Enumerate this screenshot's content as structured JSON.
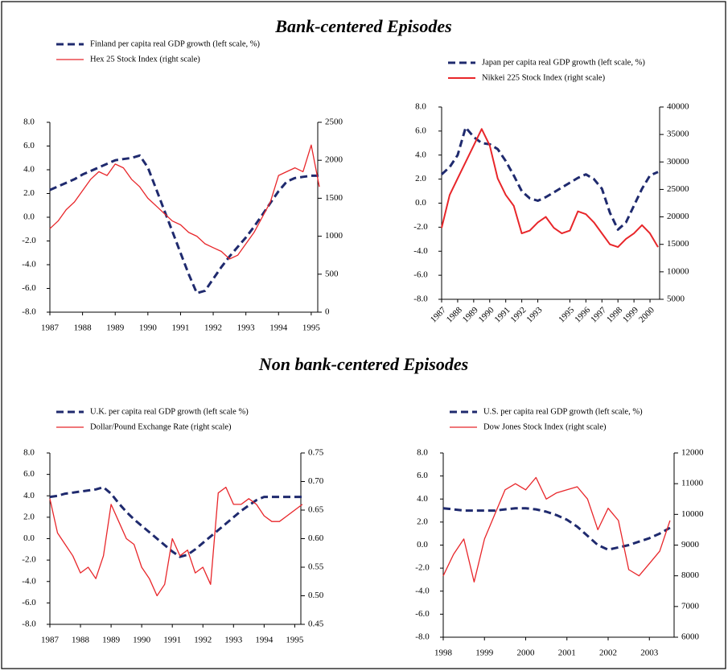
{
  "headings": [
    "Bank-centered Episodes",
    "Non bank-centered Episodes"
  ],
  "chart_data": [
    {
      "type": "line",
      "x": [
        1987,
        1987.25,
        1987.5,
        1987.75,
        1988,
        1988.25,
        1988.5,
        1988.75,
        1989,
        1989.25,
        1989.5,
        1989.75,
        1990,
        1990.25,
        1990.5,
        1990.75,
        1991,
        1991.25,
        1991.5,
        1991.75,
        1992,
        1992.25,
        1992.5,
        1992.75,
        1993,
        1993.25,
        1993.5,
        1993.75,
        1994,
        1994.25,
        1994.5,
        1994.75,
        1995,
        1995.25
      ],
      "xlim": [
        1987,
        1995.2
      ],
      "xticks": [
        1987,
        1988,
        1989,
        1990,
        1991,
        1992,
        1993,
        1994,
        1995
      ],
      "ylim": [
        -8,
        8
      ],
      "yticks": [
        {
          "value": 8,
          "label": "8.0"
        },
        {
          "value": 6,
          "label": "6.0"
        },
        {
          "value": 4,
          "label": "4.0"
        },
        {
          "value": 2,
          "label": "2.0"
        },
        {
          "value": 0,
          "label": "0.0"
        },
        {
          "value": -2,
          "label": "-2.0"
        },
        {
          "value": -4,
          "label": "-4.0"
        },
        {
          "value": -6,
          "label": "-6.0"
        },
        {
          "value": -8,
          "label": "-8.0"
        }
      ],
      "y2lim": [
        0,
        2500
      ],
      "y2ticks": [
        2500,
        2000,
        1500,
        1000,
        500,
        0
      ],
      "series": [
        {
          "name": "Finland per capita real GDP growth (left scale, %)",
          "color": "#1f2a6e",
          "style": "dashed",
          "values": [
            2.3,
            2.6,
            2.9,
            3.2,
            3.6,
            3.9,
            4.2,
            4.5,
            4.8,
            4.9,
            5.0,
            5.2,
            4.2,
            2.4,
            0.6,
            -1.2,
            -3.0,
            -4.8,
            -6.4,
            -6.2,
            -5.2,
            -4.2,
            -3.3,
            -2.5,
            -1.7,
            -0.8,
            0.2,
            1.2,
            2.2,
            3.0,
            3.3,
            3.4,
            3.5,
            3.5
          ]
        },
        {
          "name": "Hex 25 Stock Index (right scale)",
          "color": "#e8262a",
          "style": "solid",
          "axis": "y2",
          "values": [
            1100,
            1200,
            1350,
            1450,
            1600,
            1750,
            1850,
            1800,
            1950,
            1900,
            1750,
            1650,
            1500,
            1400,
            1300,
            1200,
            1150,
            1050,
            1000,
            900,
            850,
            800,
            700,
            750,
            900,
            1050,
            1250,
            1450,
            1800,
            1850,
            1900,
            1850,
            2200,
            1650
          ]
        }
      ]
    },
    {
      "type": "line",
      "x": [
        1987,
        1987.5,
        1988,
        1988.5,
        1989,
        1989.5,
        1990,
        1990.5,
        1991,
        1991.5,
        1992,
        1992.5,
        1993,
        1993.5,
        1994,
        1994.5,
        1995,
        1995.5,
        1996,
        1996.5,
        1997,
        1997.5,
        1998,
        1998.5,
        1999,
        1999.5,
        2000,
        2000.5
      ],
      "xlim": [
        1987,
        2000.6
      ],
      "xticks": [
        1987,
        1988,
        1989,
        1990,
        1991,
        1992,
        1993,
        1995,
        1996,
        1997,
        1998,
        1999,
        2000
      ],
      "ylim": [
        -8,
        8
      ],
      "yticks": [
        {
          "value": 8,
          "label": "8.0"
        },
        {
          "value": 6,
          "label": "6.0"
        },
        {
          "value": 4,
          "label": "4.0"
        },
        {
          "value": 2,
          "label": "2.0"
        },
        {
          "value": 0,
          "label": "0.0"
        },
        {
          "value": -2,
          "label": "-2.0"
        },
        {
          "value": -4,
          "label": "-4.0"
        },
        {
          "value": -6,
          "label": "-6.0"
        },
        {
          "value": -8,
          "label": "-8.0"
        }
      ],
      "y2lim": [
        5000,
        40000
      ],
      "y2ticks": [
        40000,
        35000,
        30000,
        25000,
        20000,
        15000,
        10000,
        5000
      ],
      "series": [
        {
          "name": "Japan per capita real GDP growth (left scale, %)",
          "color": "#1f2a6e",
          "style": "dashed",
          "values": [
            2.4,
            3.0,
            4.0,
            6.3,
            5.5,
            5.0,
            4.9,
            4.5,
            3.5,
            2.3,
            1.0,
            0.4,
            0.2,
            0.5,
            0.9,
            1.3,
            1.7,
            2.1,
            2.4,
            2.0,
            1.2,
            -0.8,
            -2.2,
            -1.6,
            -0.2,
            1.2,
            2.3,
            2.6
          ]
        },
        {
          "name": "Nikkei 225 Stock Index (right scale)",
          "color": "#e8262a",
          "style": "solid",
          "axis": "y2",
          "values": [
            18000,
            24000,
            27000,
            30000,
            33000,
            36000,
            33000,
            27000,
            24000,
            22000,
            17000,
            17500,
            19000,
            20000,
            18000,
            17000,
            17500,
            21000,
            20500,
            19000,
            17000,
            15000,
            14500,
            16000,
            17000,
            18500,
            17000,
            14500
          ]
        }
      ]
    },
    {
      "type": "line",
      "x": [
        1987,
        1987.25,
        1987.5,
        1987.75,
        1988,
        1988.25,
        1988.5,
        1988.75,
        1989,
        1989.25,
        1989.5,
        1989.75,
        1990,
        1990.25,
        1990.5,
        1990.75,
        1991,
        1991.25,
        1991.5,
        1991.75,
        1992,
        1992.25,
        1992.5,
        1992.75,
        1993,
        1993.25,
        1993.5,
        1993.75,
        1994,
        1994.25,
        1994.5,
        1994.75,
        1995,
        1995.25
      ],
      "xlim": [
        1987,
        1995.2
      ],
      "xticks": [
        1987,
        1988,
        1989,
        1990,
        1991,
        1992,
        1993,
        1994,
        1995
      ],
      "ylim": [
        -8,
        8
      ],
      "yticks": [
        {
          "value": 8,
          "label": "8.0"
        },
        {
          "value": 6,
          "label": "6.0"
        },
        {
          "value": 4,
          "label": "4.0"
        },
        {
          "value": 2,
          "label": "2.0"
        },
        {
          "value": 0,
          "label": "0.0"
        },
        {
          "value": -2,
          "label": "-2.0"
        },
        {
          "value": -4,
          "label": "-4.0"
        },
        {
          "value": -6,
          "label": "-6.0"
        },
        {
          "value": -8,
          "label": "-8.0"
        }
      ],
      "y2lim": [
        0.45,
        0.75
      ],
      "y2ticks": [
        0.75,
        {
          "value": 0.7,
          "label": "0.70"
        },
        0.65,
        {
          "value": 0.6,
          "label": "0.60"
        },
        0.55,
        {
          "value": 0.5,
          "label": "0.50"
        },
        0.45
      ],
      "series": [
        {
          "name": "U.K. per capita real GDP growth (left scale %)",
          "color": "#1f2a6e",
          "style": "dashed",
          "values": [
            3.9,
            4.0,
            4.2,
            4.3,
            4.4,
            4.5,
            4.6,
            4.8,
            4.2,
            3.3,
            2.5,
            1.8,
            1.2,
            0.6,
            0.0,
            -0.6,
            -1.2,
            -1.7,
            -1.5,
            -1.0,
            -0.4,
            0.2,
            0.8,
            1.4,
            2.0,
            2.6,
            3.1,
            3.6,
            3.9,
            3.9,
            3.9,
            3.9,
            3.9,
            3.9
          ]
        },
        {
          "name": "Dollar/Pound Exchange Rate (right scale)",
          "color": "#e8262a",
          "style": "solid",
          "axis": "y2",
          "values": [
            0.67,
            0.61,
            0.59,
            0.57,
            0.54,
            0.55,
            0.53,
            0.57,
            0.66,
            0.63,
            0.6,
            0.59,
            0.55,
            0.53,
            0.5,
            0.52,
            0.6,
            0.57,
            0.58,
            0.54,
            0.55,
            0.52,
            0.68,
            0.69,
            0.66,
            0.66,
            0.67,
            0.66,
            0.64,
            0.63,
            0.63,
            0.64,
            0.65,
            0.66
          ]
        }
      ]
    },
    {
      "type": "line",
      "x": [
        1998,
        1998.25,
        1998.5,
        1998.75,
        1999,
        1999.25,
        1999.5,
        1999.75,
        2000,
        2000.25,
        2000.5,
        2000.75,
        2001,
        2001.25,
        2001.5,
        2001.75,
        2002,
        2002.25,
        2002.5,
        2002.75,
        2003,
        2003.25,
        2003.5
      ],
      "xlim": [
        1998,
        2003.6
      ],
      "xticks": [
        1998,
        1999,
        2000,
        2001,
        2002,
        2003
      ],
      "ylim": [
        -8,
        8
      ],
      "yticks": [
        {
          "value": 8,
          "label": "8.0"
        },
        {
          "value": 6,
          "label": "6.0"
        },
        {
          "value": 4,
          "label": "4.0"
        },
        {
          "value": 2,
          "label": "2.0"
        },
        {
          "value": 0,
          "label": "0.0"
        },
        {
          "value": -2,
          "label": "-2.0"
        },
        {
          "value": -4,
          "label": "-4.0"
        },
        {
          "value": -6,
          "label": "-6.0"
        },
        {
          "value": -8,
          "label": "-8.0"
        }
      ],
      "y2lim": [
        6000,
        12000
      ],
      "y2ticks": [
        12000,
        11000,
        10000,
        9000,
        8000,
        7000,
        6000
      ],
      "series": [
        {
          "name": "U.S. per capita real GDP growth (left scale, %)",
          "color": "#1f2a6e",
          "style": "dashed",
          "values": [
            3.2,
            3.1,
            3.0,
            3.0,
            3.0,
            3.0,
            3.1,
            3.2,
            3.2,
            3.1,
            2.9,
            2.6,
            2.2,
            1.6,
            0.8,
            0.0,
            -0.4,
            -0.2,
            0.0,
            0.3,
            0.6,
            1.0,
            1.5
          ]
        },
        {
          "name": "Dow Jones Stock Index (right scale)",
          "color": "#e8262a",
          "style": "solid",
          "axis": "y2",
          "values": [
            8000,
            8700,
            9200,
            7800,
            9200,
            10000,
            10800,
            11000,
            10800,
            11200,
            10500,
            10700,
            10800,
            10900,
            10500,
            9500,
            10200,
            9800,
            8200,
            8000,
            8400,
            8800,
            9800
          ]
        }
      ]
    }
  ]
}
